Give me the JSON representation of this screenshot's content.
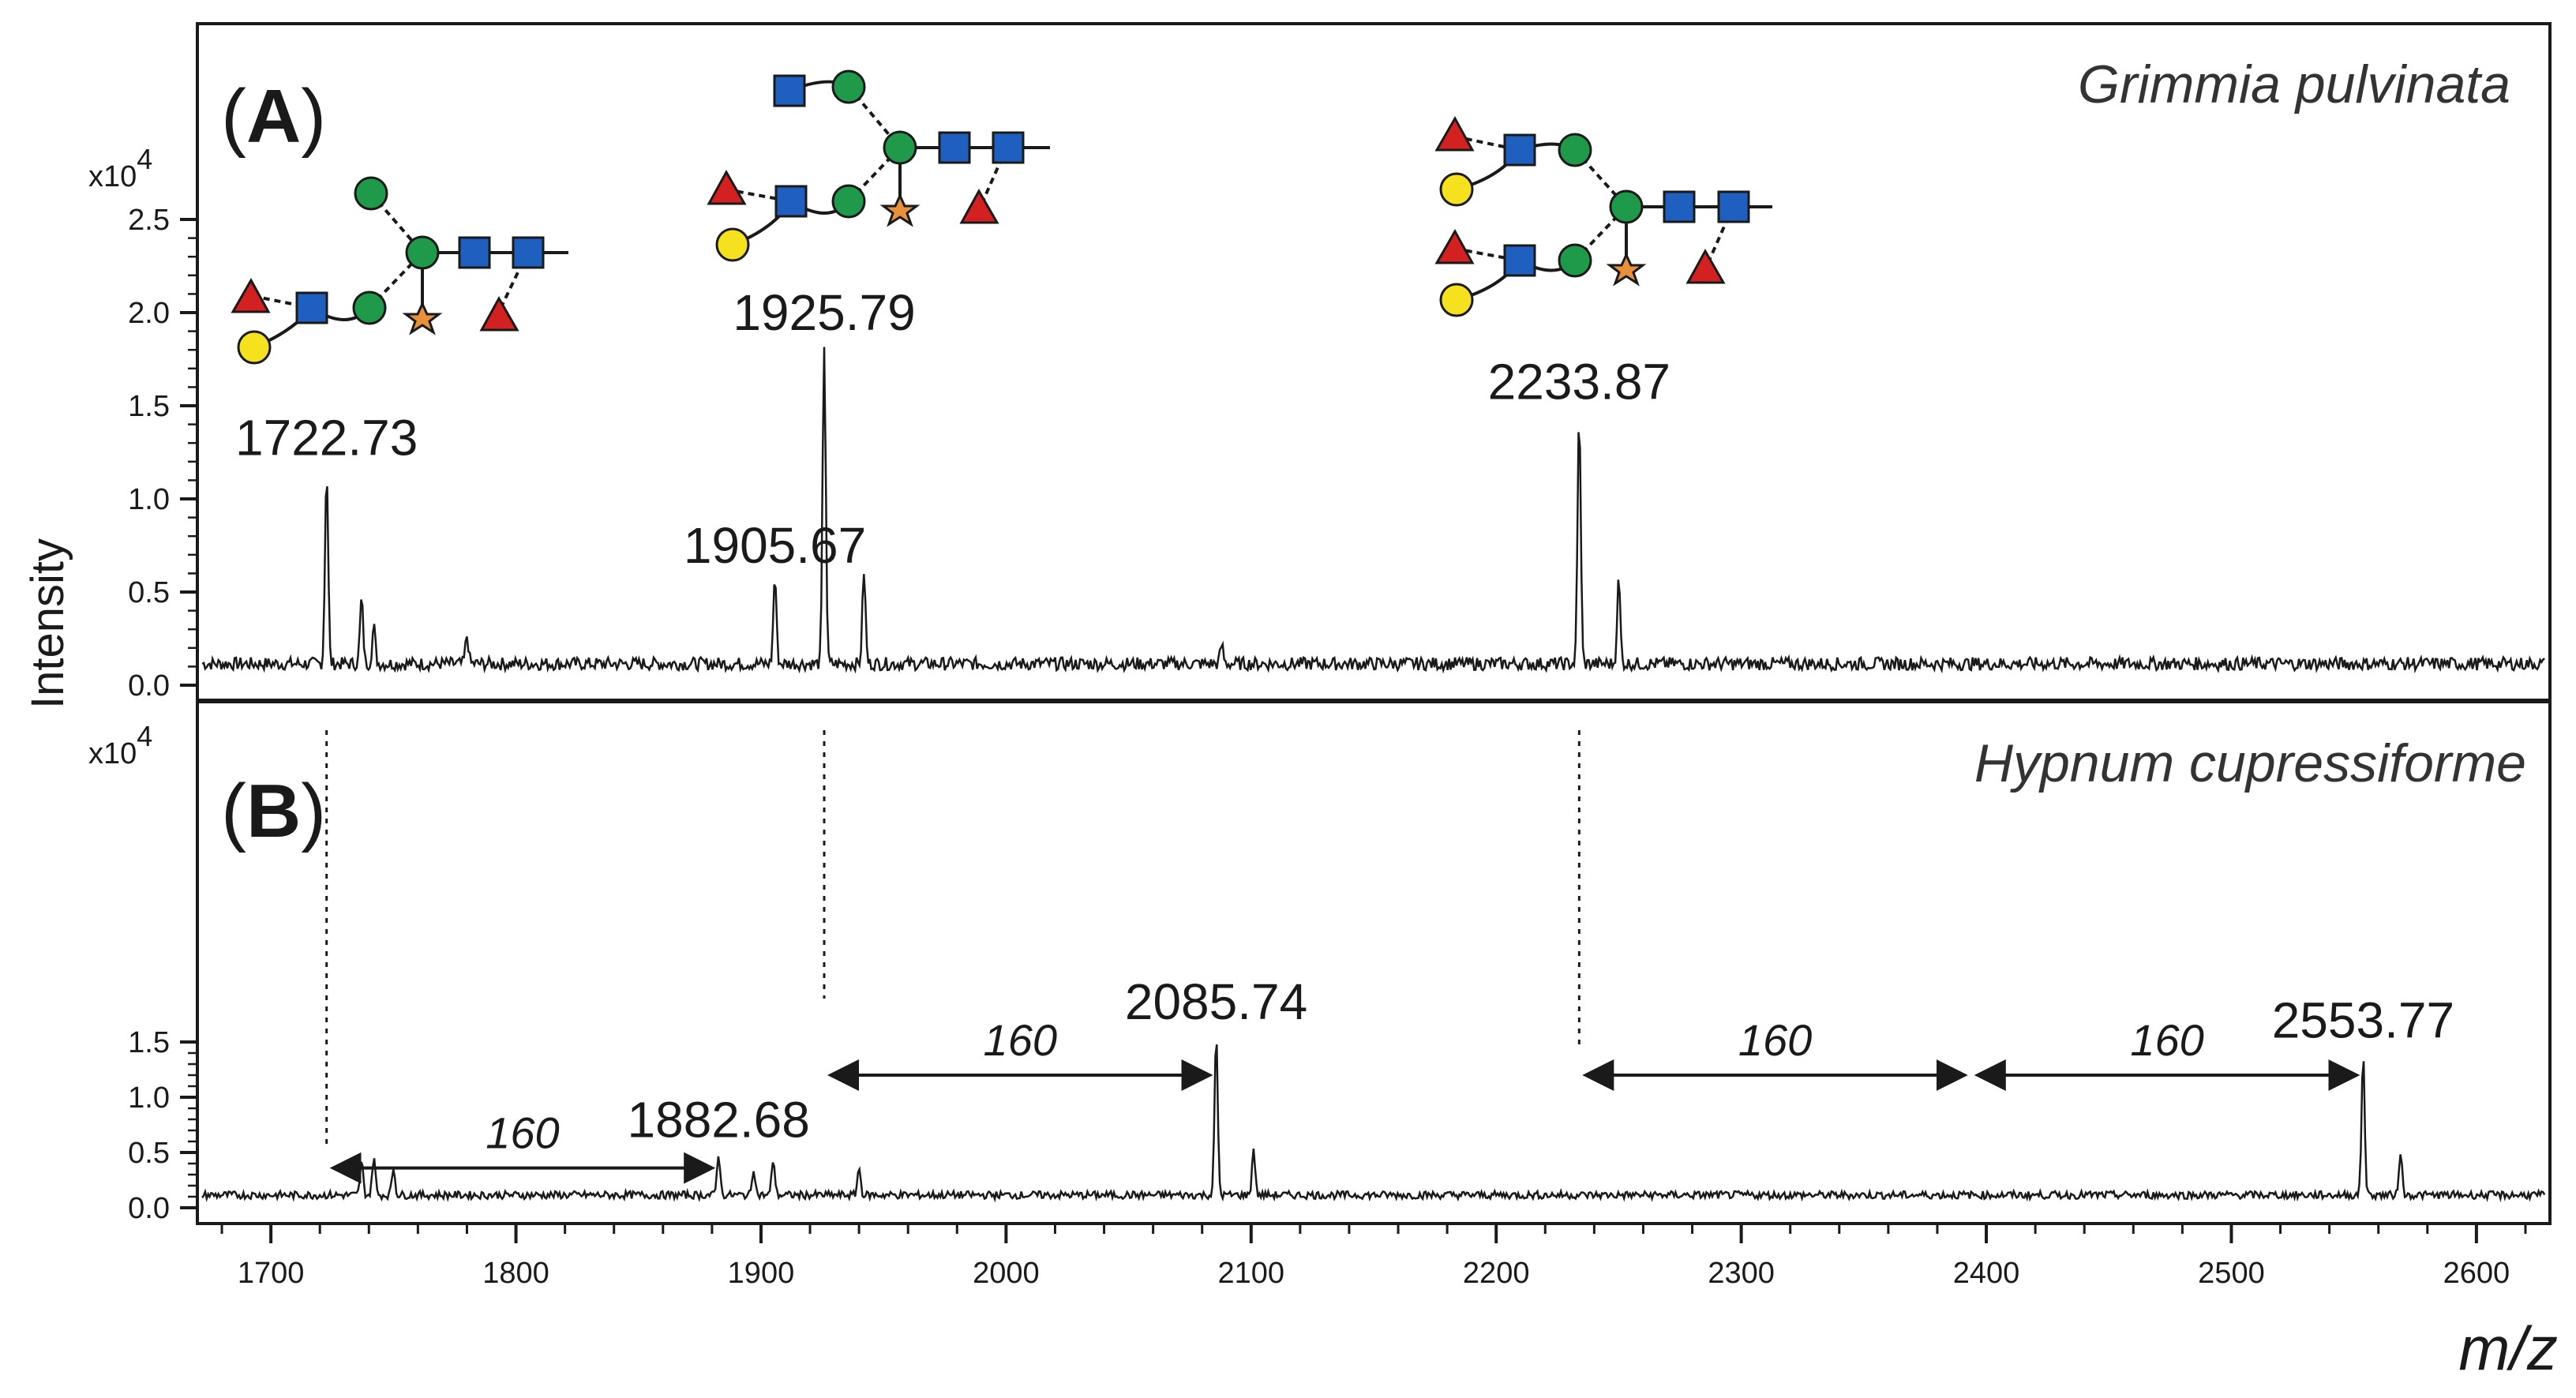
{
  "chart_data": {
    "type": "line",
    "xlabel": "m/z",
    "ylabel": "Intensity",
    "xlim": [
      1670,
      2630
    ],
    "x_ticks": [
      1700,
      1800,
      1900,
      2000,
      2100,
      2200,
      2300,
      2400,
      2500,
      2600
    ],
    "y_multiplier": "x10",
    "y_multiplier_exp": "4",
    "panels": [
      {
        "letter": "A",
        "species": "Grimmia pulvinata",
        "ylim": [
          0,
          3.4
        ],
        "y_ticks": [
          0.0,
          0.5,
          1.0,
          1.5,
          2.0,
          2.5
        ],
        "peaks": [
          {
            "mz": 1722.73,
            "height": 1.05,
            "label": "1722.73"
          },
          {
            "mz": 1737,
            "height": 0.35,
            "label": ""
          },
          {
            "mz": 1742,
            "height": 0.2,
            "label": ""
          },
          {
            "mz": 1780,
            "height": 0.15,
            "label": ""
          },
          {
            "mz": 1905.67,
            "height": 0.47,
            "label": "1905.67"
          },
          {
            "mz": 1925.79,
            "height": 1.72,
            "label": "1925.79"
          },
          {
            "mz": 1942,
            "height": 0.5,
            "label": ""
          },
          {
            "mz": 2088,
            "height": 0.1,
            "label": ""
          },
          {
            "mz": 2233.87,
            "height": 1.35,
            "label": "2233.87"
          },
          {
            "mz": 2250,
            "height": 0.45,
            "label": ""
          }
        ],
        "glycans": [
          "struct-1722",
          "struct-1925",
          "struct-2233"
        ]
      },
      {
        "letter": "B",
        "species": "Hypnum cupressiforme",
        "ylim": [
          0,
          2.4
        ],
        "y_ticks": [
          0.0,
          0.5,
          1.0,
          1.5
        ],
        "peaks": [
          {
            "mz": 1737,
            "height": 0.3,
            "label": ""
          },
          {
            "mz": 1742,
            "height": 0.35,
            "label": ""
          },
          {
            "mz": 1750,
            "height": 0.25,
            "label": ""
          },
          {
            "mz": 1882.68,
            "height": 0.38,
            "label": "1882.68"
          },
          {
            "mz": 1897,
            "height": 0.25,
            "label": ""
          },
          {
            "mz": 1905,
            "height": 0.33,
            "label": ""
          },
          {
            "mz": 1940,
            "height": 0.25,
            "label": ""
          },
          {
            "mz": 2085.74,
            "height": 1.45,
            "label": "2085.74"
          },
          {
            "mz": 2101,
            "height": 0.42,
            "label": ""
          },
          {
            "mz": 2553.77,
            "height": 1.28,
            "label": "2553.77"
          },
          {
            "mz": 2569,
            "height": 0.4,
            "label": ""
          }
        ],
        "mass_differences": [
          {
            "from": 1722.73,
            "to": 1882.68,
            "label": "160"
          },
          {
            "from": 1925.79,
            "to": 2085.74,
            "label": "160"
          },
          {
            "from": 2233.87,
            "to": 2393.8,
            "label": "160"
          },
          {
            "from": 2393.8,
            "to": 2553.77,
            "label": "160"
          }
        ]
      }
    ],
    "reference_lines": [
      1722.73,
      1925.79,
      2233.87
    ]
  }
}
